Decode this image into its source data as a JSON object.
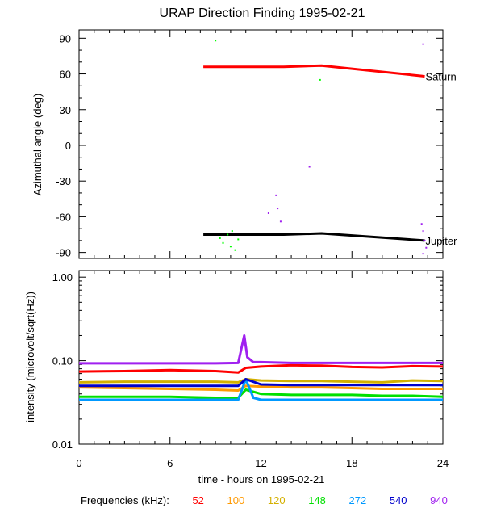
{
  "title": "URAP Direction Finding  1995-02-21",
  "chart_data": [
    {
      "type": "line",
      "title": "URAP Direction Finding  1995-02-21",
      "ylabel": "Azimuthal angle (deg)",
      "xlim": [
        0,
        24
      ],
      "ylim": [
        -95,
        97
      ],
      "yticks": [
        90,
        60,
        30,
        0,
        -30,
        -60,
        -90
      ],
      "series": [
        {
          "name": "Saturn",
          "color": "#ff0000",
          "x": [
            8.2,
            13.5,
            16.0,
            22.8
          ],
          "y": [
            66,
            66,
            67,
            58
          ]
        },
        {
          "name": "Jupiter",
          "color": "#000000",
          "x": [
            8.2,
            13.5,
            16.0,
            22.8
          ],
          "y": [
            -75,
            -75,
            -74,
            -80
          ]
        }
      ],
      "scatter": [
        {
          "color": "#00ff00",
          "points": [
            [
              9.0,
              88
            ],
            [
              15.9,
              55
            ],
            [
              9.3,
              -78
            ],
            [
              9.5,
              -82
            ],
            [
              9.8,
              -75
            ],
            [
              10.0,
              -85
            ],
            [
              10.3,
              -88
            ],
            [
              10.5,
              -79
            ],
            [
              10.1,
              -72
            ]
          ]
        },
        {
          "color": "#a020f0",
          "points": [
            [
              22.7,
              85
            ],
            [
              15.2,
              -18
            ],
            [
              13.0,
              -42
            ],
            [
              12.5,
              -57
            ],
            [
              13.1,
              -53
            ],
            [
              13.3,
              -64
            ],
            [
              22.6,
              -66
            ],
            [
              22.7,
              -72
            ],
            [
              22.8,
              -80
            ],
            [
              22.9,
              -86
            ],
            [
              22.7,
              -91
            ]
          ]
        }
      ]
    },
    {
      "type": "line",
      "ylabel": "intensity (microvolt/sqrt(Hz))",
      "xlabel": "time - hours on 1995-02-21",
      "xlim": [
        0,
        24
      ],
      "xticks": [
        0,
        6,
        12,
        18,
        24
      ],
      "yscale": "log",
      "ylim": [
        0.01,
        1.2
      ],
      "yticks": [
        "1.00",
        "0.10",
        "0.01"
      ],
      "series": [
        {
          "name": "52",
          "color": "#ff0000",
          "x": [
            0,
            3,
            6,
            9,
            10.5,
            11,
            12,
            14,
            16,
            18,
            20,
            22,
            24
          ],
          "y": [
            0.074,
            0.075,
            0.077,
            0.075,
            0.072,
            0.082,
            0.085,
            0.088,
            0.087,
            0.084,
            0.083,
            0.086,
            0.085
          ]
        },
        {
          "name": "100",
          "color": "#ff9900",
          "x": [
            0,
            3,
            6,
            9,
            10.5,
            11,
            12,
            14,
            16,
            18,
            20,
            22,
            24
          ],
          "y": [
            0.048,
            0.047,
            0.046,
            0.045,
            0.044,
            0.05,
            0.049,
            0.048,
            0.048,
            0.047,
            0.046,
            0.046,
            0.046
          ]
        },
        {
          "name": "120",
          "color": "#d4b000",
          "x": [
            0,
            3,
            6,
            9,
            10.5,
            11,
            12,
            14,
            16,
            18,
            20,
            22,
            24
          ],
          "y": [
            0.055,
            0.056,
            0.056,
            0.056,
            0.055,
            0.06,
            0.058,
            0.057,
            0.057,
            0.056,
            0.055,
            0.058,
            0.057
          ]
        },
        {
          "name": "148",
          "color": "#00e000",
          "x": [
            0,
            3,
            6,
            9,
            10.5,
            11,
            12,
            14,
            16,
            18,
            20,
            22,
            24
          ],
          "y": [
            0.037,
            0.037,
            0.037,
            0.036,
            0.036,
            0.045,
            0.04,
            0.039,
            0.039,
            0.039,
            0.038,
            0.038,
            0.037
          ]
        },
        {
          "name": "272",
          "color": "#0099ff",
          "x": [
            0,
            3,
            6,
            9,
            10.5,
            11,
            11.5,
            12,
            14,
            16,
            18,
            20,
            22,
            24
          ],
          "y": [
            0.034,
            0.034,
            0.034,
            0.034,
            0.034,
            0.06,
            0.036,
            0.034,
            0.034,
            0.034,
            0.034,
            0.034,
            0.034,
            0.034
          ]
        },
        {
          "name": "540",
          "color": "#0000cc",
          "x": [
            0,
            3,
            6,
            9,
            10.5,
            11,
            12,
            14,
            16,
            18,
            20,
            22,
            24
          ],
          "y": [
            0.05,
            0.05,
            0.05,
            0.05,
            0.05,
            0.06,
            0.052,
            0.051,
            0.051,
            0.051,
            0.051,
            0.051,
            0.051
          ]
        },
        {
          "name": "940",
          "color": "#a020f0",
          "x": [
            0,
            3,
            6,
            9,
            10.5,
            10.9,
            11.1,
            11.5,
            12,
            14,
            16,
            18,
            20,
            22,
            24
          ],
          "y": [
            0.093,
            0.093,
            0.093,
            0.093,
            0.094,
            0.2,
            0.11,
            0.096,
            0.096,
            0.094,
            0.094,
            0.094,
            0.094,
            0.094,
            0.094
          ]
        }
      ]
    }
  ],
  "legend": {
    "label": "Frequencies (kHz):",
    "items": [
      {
        "label": "52",
        "color": "#ff0000"
      },
      {
        "label": "100",
        "color": "#ff9900"
      },
      {
        "label": "120",
        "color": "#d4b000"
      },
      {
        "label": "148",
        "color": "#00e000"
      },
      {
        "label": "272",
        "color": "#0099ff"
      },
      {
        "label": "540",
        "color": "#0000cc"
      },
      {
        "label": "940",
        "color": "#a020f0"
      }
    ]
  }
}
